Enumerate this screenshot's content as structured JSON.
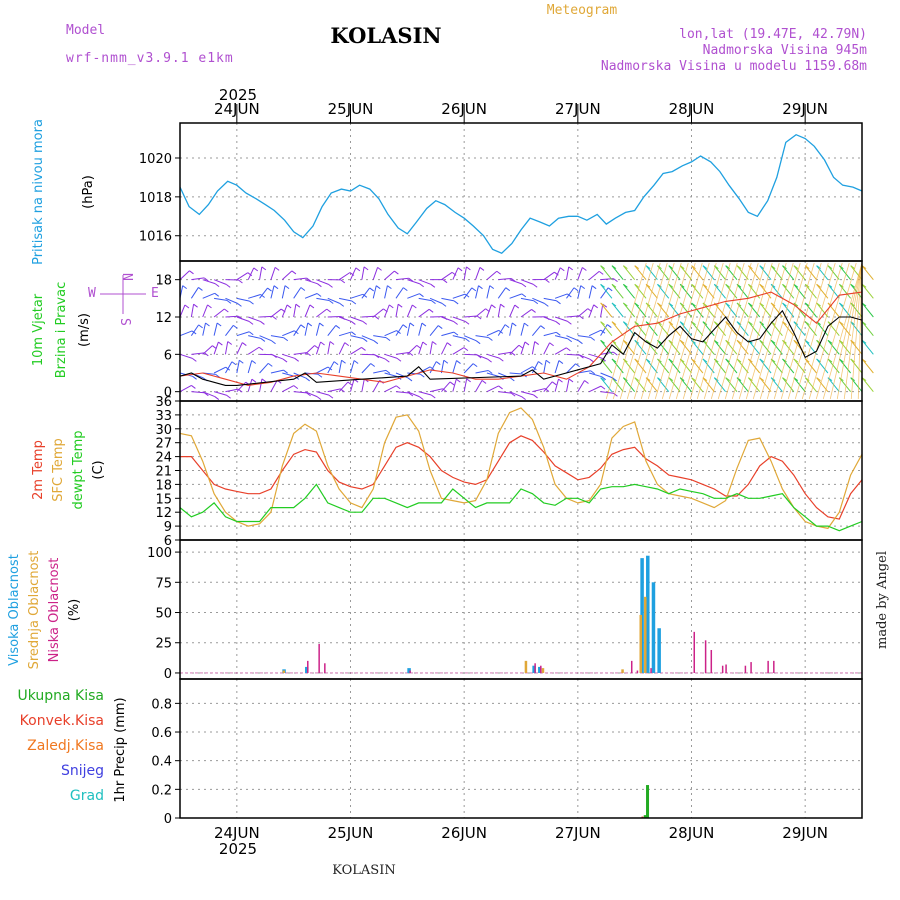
{
  "header": {
    "model_label": "Model",
    "model_name": "wrf-nmm_v3.9.1 e1km",
    "station": "KOLASIN",
    "product": "Meteogram",
    "coords": "lon,lat (19.47E, 42.79N)",
    "elevation": "Nadmorska Visina 945m",
    "model_elevation": "Nadmorska Visina u modelu 1159.68m",
    "year": "2025",
    "footer_station": "KOLASIN",
    "credit": "made by Angel"
  },
  "days": [
    "24JUN",
    "25JUN",
    "26JUN",
    "27JUN",
    "28JUN",
    "29JUN"
  ],
  "colors": {
    "pressure": "#1fa0e0",
    "wind_speed": "#000000",
    "gust": "#e8402a",
    "temp2m": "#e8402a",
    "sfc_temp": "#e0a838",
    "dewpt": "#22cc22",
    "high_cloud": "#1fa0e0",
    "mid_cloud": "#e0a838",
    "low_cloud": "#cc2288",
    "total_precip": "#22aa22",
    "convective": "#e8402a",
    "freezing": "#f07820",
    "snow": "#4040e0",
    "hail": "#20c0c0"
  },
  "chart_data": [
    {
      "panel": "pressure",
      "type": "line",
      "y_labels": [
        "Pritisak na nivou mora",
        "(hPa)"
      ],
      "yticks": [
        1016,
        1018,
        1020
      ],
      "ylim": [
        1014.7,
        1021.8
      ],
      "x_unit": "day offset from 24JUN 00UTC",
      "xlim": [
        -0.5,
        5.5
      ],
      "series": [
        {
          "x": [
            -0.5,
            -0.42,
            -0.33,
            -0.25,
            -0.17,
            -0.08,
            0.0,
            0.08,
            0.17,
            0.25,
            0.33,
            0.42,
            0.5,
            0.58,
            0.67,
            0.75,
            0.83,
            0.92,
            1.0,
            1.08,
            1.17,
            1.25,
            1.33,
            1.42,
            1.5,
            1.58,
            1.67,
            1.75,
            1.83,
            1.92,
            2.0,
            2.08,
            2.17,
            2.25,
            2.33,
            2.42,
            2.5,
            2.58,
            2.67,
            2.75,
            2.83,
            2.92,
            3.0,
            3.08,
            3.17,
            3.25,
            3.33,
            3.42,
            3.5,
            3.58,
            3.67,
            3.75,
            3.83,
            3.92,
            4.0,
            4.08,
            4.17,
            4.25,
            4.33,
            4.42,
            4.5,
            4.58,
            4.67,
            4.75,
            4.83,
            4.92,
            5.0,
            5.08,
            5.17,
            5.25,
            5.33,
            5.42,
            5.5
          ],
          "y": [
            1018.5,
            1017.5,
            1017.1,
            1017.6,
            1018.3,
            1018.8,
            1018.6,
            1018.2,
            1017.9,
            1017.6,
            1017.3,
            1016.8,
            1016.2,
            1015.9,
            1016.5,
            1017.5,
            1018.2,
            1018.4,
            1018.3,
            1018.6,
            1018.4,
            1017.9,
            1017.1,
            1016.4,
            1016.1,
            1016.7,
            1017.4,
            1017.8,
            1017.6,
            1017.2,
            1016.9,
            1016.5,
            1016.0,
            1015.3,
            1015.1,
            1015.6,
            1016.3,
            1016.9,
            1016.7,
            1016.5,
            1016.9,
            1017.0,
            1017.0,
            1016.8,
            1017.1,
            1016.6,
            1016.9,
            1017.2,
            1017.3,
            1018.0,
            1018.6,
            1019.2,
            1019.3,
            1019.6,
            1019.8,
            1020.1,
            1019.8,
            1019.3,
            1018.6,
            1017.9,
            1017.2,
            1017.0,
            1017.8,
            1019.0,
            1020.8,
            1021.2,
            1021.0,
            1020.6,
            1019.9,
            1019.0,
            1018.6,
            1018.5,
            1018.3
          ]
        }
      ]
    },
    {
      "panel": "wind",
      "type": "line",
      "y_labels": [
        "10m Vjetar",
        "Brzina i Pravac",
        "(m/s)"
      ],
      "direction_legend": [
        "N",
        "W",
        "E",
        "S"
      ],
      "yticks": [
        0,
        6,
        12,
        18
      ],
      "ylim": [
        -1.5,
        21
      ],
      "barb_levels": [
        0,
        3,
        6,
        9,
        12,
        15,
        18
      ],
      "series": [
        {
          "name": "wind_speed",
          "x": [
            -0.5,
            -0.4,
            -0.3,
            -0.2,
            -0.1,
            0.0,
            0.5,
            0.6,
            0.7,
            1.5,
            1.6,
            1.7,
            2.5,
            2.6,
            2.7,
            3.2,
            3.3,
            3.4,
            3.5,
            3.6,
            3.7,
            3.8,
            3.9,
            4.0,
            4.1,
            4.2,
            4.3,
            4.4,
            4.5,
            4.6,
            4.7,
            4.8,
            4.9,
            5.0,
            5.1,
            5.2,
            5.3,
            5.4,
            5.5
          ],
          "y": [
            2.5,
            3.0,
            2.0,
            1.5,
            1.0,
            1.0,
            2.0,
            3.0,
            1.5,
            2.5,
            4.0,
            2.0,
            2.5,
            3.5,
            2.0,
            4.5,
            7.5,
            6.0,
            9.5,
            8.0,
            7.0,
            9.0,
            10.5,
            8.5,
            8.0,
            10.0,
            12.0,
            9.5,
            8.0,
            8.5,
            11.0,
            13.0,
            9.5,
            5.5,
            6.5,
            10.5,
            12.0,
            12.0,
            11.5
          ]
        },
        {
          "name": "gust",
          "x": [
            -0.5,
            -0.3,
            -0.1,
            0.1,
            0.3,
            0.5,
            0.7,
            0.9,
            1.1,
            1.3,
            1.5,
            1.7,
            1.9,
            2.1,
            2.3,
            2.5,
            2.7,
            2.9,
            3.1,
            3.3,
            3.5,
            3.7,
            3.9,
            4.1,
            4.3,
            4.5,
            4.7,
            4.9,
            5.1,
            5.3,
            5.5
          ],
          "y": [
            2.5,
            3.0,
            2.0,
            1.0,
            1.5,
            2.5,
            3.0,
            2.5,
            2.0,
            1.5,
            2.5,
            3.5,
            3.0,
            2.0,
            2.0,
            2.5,
            3.0,
            2.0,
            4.0,
            8.0,
            10.5,
            11.0,
            12.5,
            13.5,
            14.5,
            15.0,
            16.0,
            14.0,
            11.0,
            15.5,
            16.0
          ]
        }
      ]
    },
    {
      "panel": "temperature",
      "type": "line",
      "y_labels": [
        "2m Temp",
        "SFC Temp",
        "dewpt Temp",
        "(C)"
      ],
      "yticks": [
        6,
        9,
        12,
        15,
        18,
        21,
        24,
        27,
        30,
        33,
        36
      ],
      "ylim": [
        6,
        36
      ],
      "series": [
        {
          "name": "2m Temp",
          "x": [
            -0.5,
            -0.4,
            -0.3,
            -0.2,
            -0.1,
            0.0,
            0.1,
            0.2,
            0.3,
            0.4,
            0.5,
            0.6,
            0.7,
            0.8,
            0.9,
            1.0,
            1.1,
            1.2,
            1.3,
            1.4,
            1.5,
            1.6,
            1.7,
            1.8,
            1.9,
            2.0,
            2.1,
            2.2,
            2.3,
            2.4,
            2.5,
            2.6,
            2.7,
            2.8,
            2.9,
            3.0,
            3.1,
            3.2,
            3.3,
            3.4,
            3.5,
            3.6,
            3.7,
            3.8,
            3.9,
            4.0,
            4.1,
            4.2,
            4.3,
            4.4,
            4.5,
            4.6,
            4.7,
            4.8,
            4.9,
            5.0,
            5.1,
            5.2,
            5.3,
            5.4,
            5.5
          ],
          "y": [
            24,
            24,
            21,
            18,
            17,
            16.5,
            16,
            16,
            17,
            21,
            24.5,
            25.5,
            25,
            21,
            18.5,
            17.5,
            17,
            18,
            22,
            26,
            27,
            26,
            24,
            21,
            19.5,
            18.5,
            18,
            19,
            23,
            27,
            28.5,
            27.5,
            25,
            22,
            20.5,
            19,
            19.5,
            21.5,
            24.5,
            25.5,
            26,
            23.5,
            22,
            20,
            19.5,
            19,
            18,
            17,
            15.5,
            15.5,
            18,
            22,
            24,
            23,
            20,
            16,
            13,
            11,
            10.5,
            16,
            19
          ]
        },
        {
          "name": "SFC Temp",
          "x": [
            -0.5,
            -0.4,
            -0.3,
            -0.2,
            -0.1,
            0.0,
            0.1,
            0.2,
            0.3,
            0.4,
            0.5,
            0.6,
            0.7,
            0.8,
            0.9,
            1.0,
            1.1,
            1.2,
            1.3,
            1.4,
            1.5,
            1.6,
            1.7,
            1.8,
            1.9,
            2.0,
            2.1,
            2.2,
            2.3,
            2.4,
            2.5,
            2.6,
            2.7,
            2.8,
            2.9,
            3.0,
            3.1,
            3.2,
            3.3,
            3.4,
            3.5,
            3.6,
            3.7,
            3.8,
            3.9,
            4.0,
            4.1,
            4.2,
            4.3,
            4.4,
            4.5,
            4.6,
            4.7,
            4.8,
            4.9,
            5.0,
            5.1,
            5.2,
            5.3,
            5.4,
            5.5
          ],
          "y": [
            29,
            28.5,
            23,
            16,
            12,
            10,
            9,
            9.5,
            12,
            22,
            29,
            31,
            29.5,
            22,
            17,
            14,
            13,
            17,
            27,
            32.5,
            33,
            29.5,
            21,
            15,
            14.5,
            14,
            14.5,
            19,
            29,
            33.5,
            34.5,
            32,
            26,
            18,
            15,
            14,
            14.5,
            18,
            28,
            30.5,
            31.5,
            23,
            18,
            16,
            15.5,
            15,
            14,
            13,
            14.5,
            21.5,
            27.5,
            28,
            23,
            17,
            13,
            10,
            9,
            8.5,
            12,
            20,
            24.5
          ]
        },
        {
          "name": "dewpt Temp",
          "x": [
            -0.5,
            -0.4,
            -0.3,
            -0.2,
            -0.1,
            0.0,
            0.1,
            0.2,
            0.3,
            0.4,
            0.5,
            0.6,
            0.7,
            0.8,
            0.9,
            1.0,
            1.1,
            1.2,
            1.3,
            1.4,
            1.5,
            1.6,
            1.7,
            1.8,
            1.9,
            2.0,
            2.1,
            2.2,
            2.3,
            2.4,
            2.5,
            2.6,
            2.7,
            2.8,
            2.9,
            3.0,
            3.1,
            3.2,
            3.3,
            3.4,
            3.5,
            3.6,
            3.7,
            3.8,
            3.9,
            4.0,
            4.1,
            4.2,
            4.3,
            4.4,
            4.5,
            4.6,
            4.7,
            4.8,
            4.9,
            5.0,
            5.1,
            5.2,
            5.3,
            5.4,
            5.5
          ],
          "y": [
            13,
            11,
            12,
            14,
            11,
            10,
            10,
            10,
            13,
            13,
            13,
            15,
            18,
            14,
            13,
            12,
            12,
            15,
            15,
            14,
            13,
            14,
            14,
            14,
            17,
            15,
            13,
            14,
            14,
            14,
            17,
            16,
            14,
            13.5,
            15,
            15,
            14,
            17,
            17.5,
            17.5,
            18,
            17.5,
            17,
            16,
            17,
            16.5,
            16,
            15,
            15,
            16,
            15,
            15,
            15.5,
            16,
            13,
            11,
            9,
            9,
            8,
            9,
            10
          ]
        }
      ]
    },
    {
      "panel": "cloud",
      "type": "bar",
      "y_labels": [
        "Visoka Oblacnost",
        "Srednja Oblacnost",
        "Niska Oblacnost",
        "(%)"
      ],
      "yticks": [
        0,
        25,
        50,
        75,
        100
      ],
      "ylim": [
        -5,
        110
      ],
      "series": [
        {
          "name": "Visoka Oblacnost",
          "x": [
            0.4,
            0.6,
            1.5,
            2.6,
            2.65,
            3.55,
            3.6,
            3.65,
            3.7
          ],
          "y": [
            3,
            5,
            4,
            6,
            5,
            95,
            97,
            75,
            37
          ]
        },
        {
          "name": "Srednja Oblacnost",
          "x": [
            0.42,
            2.55,
            2.7,
            3.4,
            3.56,
            3.6
          ],
          "y": [
            2,
            10,
            4,
            3,
            48,
            63
          ]
        },
        {
          "name": "Niska Oblacnost",
          "x": [
            0.6,
            0.7,
            0.75,
            1.5,
            2.6,
            2.65,
            3.45,
            3.5,
            3.62,
            4.0,
            4.1,
            4.15,
            4.25,
            4.28,
            4.45,
            4.5,
            4.65,
            4.7
          ],
          "y": [
            10,
            24,
            8,
            2,
            8,
            6,
            10,
            2,
            4,
            34,
            27,
            19,
            6,
            7,
            6,
            9,
            10,
            10
          ]
        }
      ]
    },
    {
      "panel": "precip",
      "type": "bar",
      "y_labels": [
        "1hr Precip (mm)"
      ],
      "legend": [
        "Ukupna Kisa",
        "Konvek.Kisa",
        "Zaledj.Kisa",
        "Snijeg",
        "Grad"
      ],
      "yticks": [
        0,
        0.2,
        0.4,
        0.6,
        0.8
      ],
      "ylim": [
        0,
        0.97
      ],
      "series": [
        {
          "name": "Ukupna Kisa",
          "x": [
            3.58,
            3.6
          ],
          "y": [
            0.02,
            0.23
          ]
        },
        {
          "name": "Konvek.Kisa",
          "x": [
            3.56
          ],
          "y": [
            0.01
          ]
        }
      ]
    }
  ]
}
